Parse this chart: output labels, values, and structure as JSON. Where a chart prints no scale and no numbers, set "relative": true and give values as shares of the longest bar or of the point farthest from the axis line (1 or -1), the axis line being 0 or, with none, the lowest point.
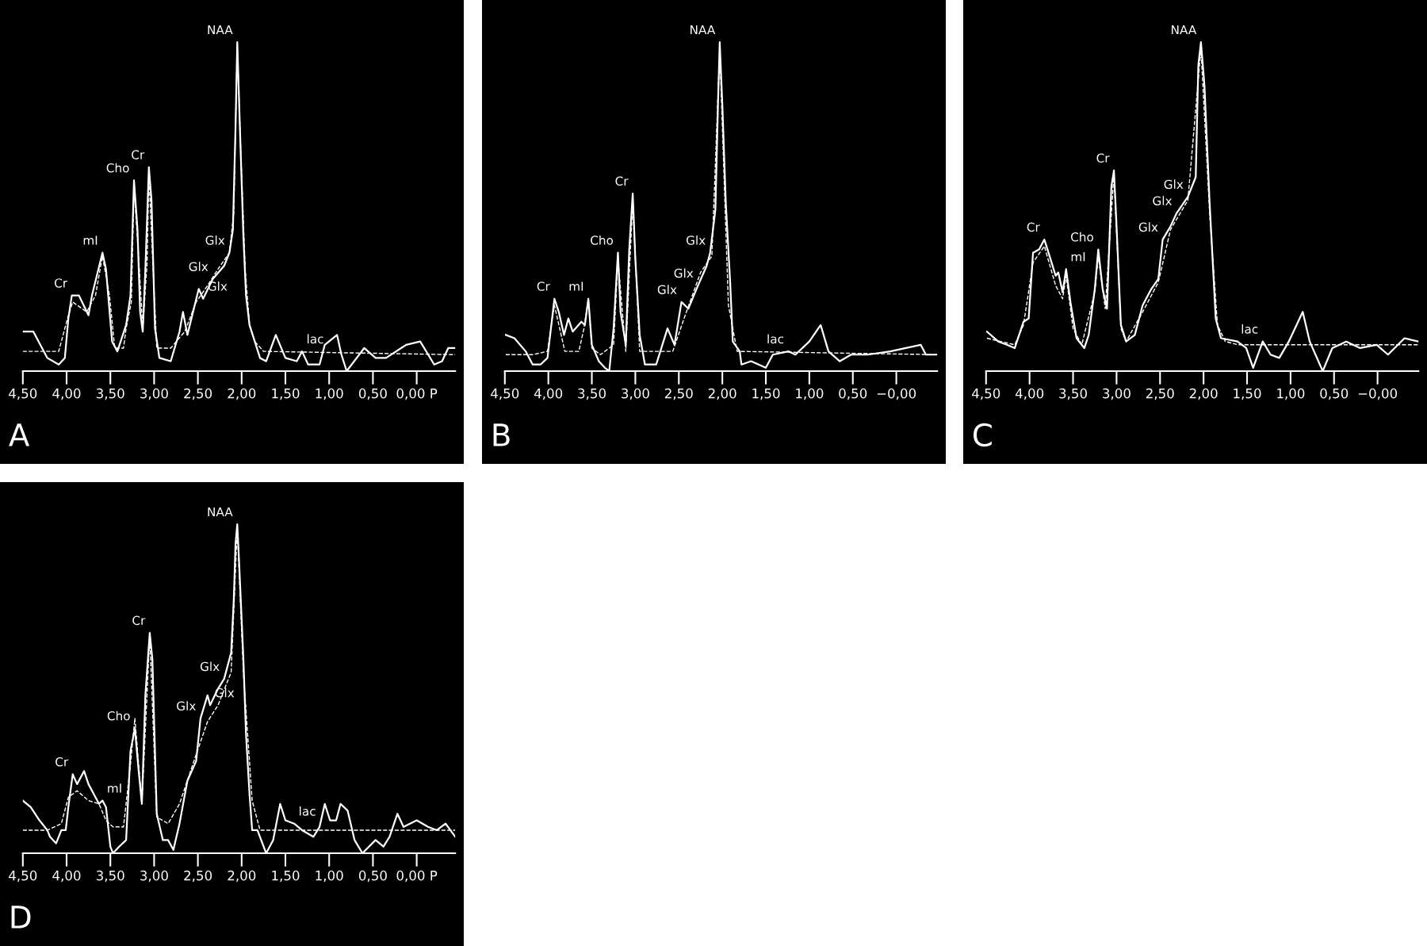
{
  "chart_data": [
    {
      "type": "line",
      "title": "A",
      "relative": true,
      "xlim": [
        4.5,
        -0.44
      ],
      "xticks": [
        {
          "value": 4.5,
          "label": "4,50"
        },
        {
          "value": 4.0,
          "label": "4,00"
        },
        {
          "value": 3.5,
          "label": "3,50"
        },
        {
          "value": 3.0,
          "label": "3,00"
        },
        {
          "value": 2.5,
          "label": "2,50"
        },
        {
          "value": 2.0,
          "label": "2,00"
        },
        {
          "value": 1.5,
          "label": "1,50"
        },
        {
          "value": 1.0,
          "label": "1,00"
        },
        {
          "value": 0.5,
          "label": "0,50"
        },
        {
          "value": 0.0,
          "label": "0,00 P"
        }
      ],
      "series": [
        {
          "color": "#ffffff",
          "line_style": "solid",
          "x": [
            4.5,
            4.38,
            4.22,
            4.09,
            4.02,
            3.98,
            3.94,
            3.86,
            3.75,
            3.71,
            3.59,
            3.55,
            3.48,
            3.42,
            3.32,
            3.27,
            3.23,
            3.19,
            3.16,
            3.13,
            3.1,
            3.06,
            3.03,
            2.99,
            2.94,
            2.81,
            2.71,
            2.67,
            2.62,
            2.49,
            2.44,
            2.33,
            2.2,
            2.14,
            2.1,
            2.07,
            2.05,
            2.02,
            1.98,
            1.95,
            1.91,
            1.79,
            1.72,
            1.61,
            1.5,
            1.37,
            1.31,
            1.24,
            1.11,
            1.05,
            0.91,
            0.86,
            0.8,
            0.6,
            0.47,
            0.35,
            0.12,
            -0.04,
            -0.2,
            -0.29,
            -0.36,
            -0.44
          ],
          "values": [
            0.12,
            0.12,
            0.04,
            0.02,
            0.04,
            0.16,
            0.23,
            0.23,
            0.17,
            0.23,
            0.36,
            0.31,
            0.09,
            0.06,
            0.14,
            0.23,
            0.58,
            0.43,
            0.18,
            0.12,
            0.31,
            0.62,
            0.52,
            0.13,
            0.04,
            0.03,
            0.12,
            0.18,
            0.11,
            0.25,
            0.22,
            0.28,
            0.32,
            0.36,
            0.43,
            0.74,
            1.0,
            0.74,
            0.41,
            0.23,
            0.14,
            0.04,
            0.03,
            0.11,
            0.04,
            0.03,
            0.06,
            0.02,
            0.02,
            0.08,
            0.11,
            0.05,
            0.0,
            0.07,
            0.04,
            0.04,
            0.08,
            0.09,
            0.02,
            0.03,
            0.07,
            0.07
          ]
        },
        {
          "color": "#ffffff",
          "line_style": "dashed",
          "x": [
            4.5,
            4.09,
            3.99,
            3.93,
            3.77,
            3.67,
            3.59,
            3.51,
            3.45,
            3.35,
            3.32,
            3.26,
            3.23,
            3.18,
            3.13,
            3.08,
            3.06,
            3.02,
            2.97,
            2.81,
            2.65,
            2.52,
            2.39,
            2.27,
            2.14,
            2.09,
            2.05,
            2.01,
            1.96,
            1.91,
            1.85,
            1.75,
            -0.44
          ],
          "values": [
            0.06,
            0.06,
            0.16,
            0.21,
            0.18,
            0.23,
            0.35,
            0.23,
            0.07,
            0.07,
            0.13,
            0.21,
            0.56,
            0.36,
            0.13,
            0.33,
            0.6,
            0.36,
            0.07,
            0.07,
            0.12,
            0.21,
            0.26,
            0.31,
            0.36,
            0.48,
            0.99,
            0.67,
            0.31,
            0.14,
            0.09,
            0.06,
            0.05
          ]
        }
      ],
      "annotations": [
        {
          "text": "Cr",
          "x": 3.94,
          "y": 0.23
        },
        {
          "text": "mI",
          "x": 3.59,
          "y": 0.36
        },
        {
          "text": "Cho",
          "x": 3.23,
          "y": 0.58
        },
        {
          "text": "Cr",
          "x": 3.06,
          "y": 0.62
        },
        {
          "text": "NAA",
          "x": 2.05,
          "y": 1.0
        },
        {
          "text": "Glx",
          "x": 2.44,
          "y": 0.22
        },
        {
          "text": "Glx",
          "x": 2.33,
          "y": 0.28
        },
        {
          "text": "Glx",
          "x": 2.14,
          "y": 0.36
        },
        {
          "text": "lac",
          "x": 1.31,
          "y": 0.06
        }
      ]
    },
    {
      "type": "line",
      "title": "B",
      "relative": true,
      "xlim": [
        4.5,
        -0.47
      ],
      "xticks": [
        {
          "value": 4.5,
          "label": "4,50"
        },
        {
          "value": 4.0,
          "label": "4,00"
        },
        {
          "value": 3.5,
          "label": "3,50"
        },
        {
          "value": 3.0,
          "label": "3,00"
        },
        {
          "value": 2.5,
          "label": "2,50"
        },
        {
          "value": 2.0,
          "label": "2,00"
        },
        {
          "value": 1.5,
          "label": "1,50"
        },
        {
          "value": 1.0,
          "label": "1,00"
        },
        {
          "value": 0.5,
          "label": "0,50"
        },
        {
          "value": 0.0,
          "label": "−0,00"
        }
      ],
      "series": [
        {
          "color": "#ffffff",
          "line_style": "solid",
          "x": [
            4.49,
            4.39,
            4.26,
            4.18,
            4.09,
            4.01,
            3.93,
            3.88,
            3.82,
            3.77,
            3.72,
            3.62,
            3.58,
            3.54,
            3.5,
            3.42,
            3.35,
            3.3,
            3.25,
            3.2,
            3.17,
            3.11,
            3.07,
            3.03,
            3.0,
            2.95,
            2.89,
            2.76,
            2.63,
            2.55,
            2.47,
            2.39,
            2.28,
            2.18,
            2.14,
            2.08,
            2.05,
            2.03,
            2.0,
            1.96,
            1.91,
            1.88,
            1.8,
            1.78,
            1.67,
            1.5,
            1.42,
            1.24,
            1.16,
            1.0,
            0.87,
            0.78,
            0.65,
            0.52,
            0.33,
            0.07,
            -0.28,
            -0.34,
            -0.47
          ],
          "values": [
            0.11,
            0.1,
            0.06,
            0.02,
            0.02,
            0.04,
            0.22,
            0.18,
            0.11,
            0.16,
            0.12,
            0.15,
            0.14,
            0.22,
            0.08,
            0.03,
            0.01,
            0.0,
            0.13,
            0.36,
            0.18,
            0.08,
            0.37,
            0.54,
            0.34,
            0.11,
            0.02,
            0.02,
            0.13,
            0.08,
            0.21,
            0.19,
            0.26,
            0.32,
            0.36,
            0.49,
            0.81,
            1.0,
            0.81,
            0.51,
            0.27,
            0.09,
            0.06,
            0.02,
            0.03,
            0.01,
            0.05,
            0.06,
            0.05,
            0.09,
            0.14,
            0.06,
            0.03,
            0.05,
            0.05,
            0.06,
            0.08,
            0.05,
            0.05
          ]
        },
        {
          "color": "#ffffff",
          "line_style": "dashed",
          "x": [
            4.49,
            4.18,
            4.01,
            3.93,
            3.81,
            3.65,
            3.59,
            3.54,
            3.5,
            3.4,
            3.25,
            3.2,
            3.11,
            3.03,
            2.95,
            2.57,
            2.44,
            2.25,
            2.12,
            2.03,
            1.93,
            1.83,
            -0.47
          ],
          "values": [
            0.05,
            0.05,
            0.06,
            0.2,
            0.06,
            0.06,
            0.13,
            0.22,
            0.07,
            0.05,
            0.08,
            0.34,
            0.06,
            0.52,
            0.06,
            0.06,
            0.16,
            0.3,
            0.35,
            0.98,
            0.2,
            0.06,
            0.05
          ]
        }
      ],
      "annotations": [
        {
          "text": "Cr",
          "x": 3.93,
          "y": 0.22
        },
        {
          "text": "mI",
          "x": 3.54,
          "y": 0.22
        },
        {
          "text": "Cho",
          "x": 3.2,
          "y": 0.36
        },
        {
          "text": "Cr",
          "x": 3.03,
          "y": 0.54
        },
        {
          "text": "NAA",
          "x": 2.03,
          "y": 1.0
        },
        {
          "text": "Glx",
          "x": 2.47,
          "y": 0.21
        },
        {
          "text": "Glx",
          "x": 2.28,
          "y": 0.26
        },
        {
          "text": "Glx",
          "x": 2.14,
          "y": 0.36
        },
        {
          "text": "lac",
          "x": 1.24,
          "y": 0.06
        }
      ]
    },
    {
      "type": "line",
      "title": "C",
      "relative": true,
      "xlim": [
        4.5,
        -0.47
      ],
      "xticks": [
        {
          "value": 4.5,
          "label": "4,50"
        },
        {
          "value": 4.0,
          "label": "4,00"
        },
        {
          "value": 3.5,
          "label": "3,50"
        },
        {
          "value": 3.0,
          "label": "3,00"
        },
        {
          "value": 2.5,
          "label": "2,50"
        },
        {
          "value": 2.0,
          "label": "2,00"
        },
        {
          "value": 1.5,
          "label": "1,50"
        },
        {
          "value": 1.0,
          "label": "1,00"
        },
        {
          "value": 0.5,
          "label": "0,50"
        },
        {
          "value": 0.0,
          "label": "−0,00"
        }
      ],
      "series": [
        {
          "color": "#ffffff",
          "line_style": "solid",
          "x": [
            4.49,
            4.36,
            4.26,
            4.17,
            4.07,
            4.01,
            3.96,
            3.89,
            3.83,
            3.77,
            3.7,
            3.67,
            3.62,
            3.58,
            3.53,
            3.46,
            3.37,
            3.32,
            3.25,
            3.21,
            3.16,
            3.11,
            3.06,
            3.03,
            3.0,
            2.95,
            2.89,
            2.79,
            2.7,
            2.6,
            2.52,
            2.47,
            2.38,
            2.31,
            2.18,
            2.09,
            2.06,
            2.03,
            1.99,
            1.93,
            1.86,
            1.8,
            1.61,
            1.51,
            1.43,
            1.32,
            1.23,
            1.13,
            1.02,
            0.86,
            0.78,
            0.63,
            0.52,
            0.36,
            0.2,
            0.01,
            -0.12,
            -0.31,
            -0.47
          ],
          "values": [
            0.12,
            0.09,
            0.08,
            0.07,
            0.15,
            0.16,
            0.36,
            0.37,
            0.4,
            0.35,
            0.29,
            0.3,
            0.24,
            0.31,
            0.21,
            0.1,
            0.07,
            0.11,
            0.25,
            0.37,
            0.25,
            0.19,
            0.56,
            0.61,
            0.44,
            0.14,
            0.09,
            0.11,
            0.2,
            0.25,
            0.28,
            0.4,
            0.44,
            0.48,
            0.53,
            0.59,
            0.93,
            1.0,
            0.87,
            0.51,
            0.16,
            0.1,
            0.09,
            0.07,
            0.01,
            0.09,
            0.05,
            0.04,
            0.09,
            0.18,
            0.09,
            0.0,
            0.07,
            0.09,
            0.07,
            0.08,
            0.05,
            0.1,
            0.09
          ]
        },
        {
          "color": "#ffffff",
          "line_style": "dashed",
          "x": [
            4.49,
            4.17,
            4.07,
            3.96,
            3.83,
            3.7,
            3.62,
            3.58,
            3.5,
            3.4,
            3.25,
            3.21,
            3.13,
            3.03,
            2.95,
            2.89,
            2.7,
            2.52,
            2.38,
            2.18,
            2.03,
            1.93,
            1.84,
            1.75,
            1.6,
            -0.47
          ],
          "values": [
            0.1,
            0.08,
            0.14,
            0.33,
            0.38,
            0.26,
            0.22,
            0.29,
            0.13,
            0.08,
            0.24,
            0.35,
            0.19,
            0.6,
            0.13,
            0.09,
            0.18,
            0.27,
            0.43,
            0.52,
            0.98,
            0.48,
            0.14,
            0.09,
            0.08,
            0.08
          ]
        }
      ],
      "annotations": [
        {
          "text": "Cr",
          "x": 3.83,
          "y": 0.4
        },
        {
          "text": "mI",
          "x": 3.58,
          "y": 0.31
        },
        {
          "text": "Cho",
          "x": 3.21,
          "y": 0.37
        },
        {
          "text": "Cr",
          "x": 3.03,
          "y": 0.61
        },
        {
          "text": "NAA",
          "x": 2.03,
          "y": 1.0
        },
        {
          "text": "Glx",
          "x": 2.47,
          "y": 0.4
        },
        {
          "text": "Glx",
          "x": 2.31,
          "y": 0.48
        },
        {
          "text": "Glx",
          "x": 2.18,
          "y": 0.53
        },
        {
          "text": "lac",
          "x": 1.32,
          "y": 0.09
        }
      ]
    },
    {
      "type": "line",
      "title": "D",
      "relative": true,
      "xlim": [
        4.5,
        -0.44
      ],
      "xticks": [
        {
          "value": 4.5,
          "label": "4,50"
        },
        {
          "value": 4.0,
          "label": "4,00"
        },
        {
          "value": 3.5,
          "label": "3,50"
        },
        {
          "value": 3.0,
          "label": "3,00"
        },
        {
          "value": 2.5,
          "label": "2,50"
        },
        {
          "value": 2.0,
          "label": "2,00"
        },
        {
          "value": 1.5,
          "label": "1,50"
        },
        {
          "value": 1.0,
          "label": "1,00"
        },
        {
          "value": 0.5,
          "label": "0,50"
        },
        {
          "value": 0.0,
          "label": "0,00 P"
        }
      ],
      "series": [
        {
          "color": "#ffffff",
          "line_style": "solid",
          "x": [
            4.5,
            4.41,
            4.31,
            4.22,
            4.19,
            4.12,
            4.06,
            4.01,
            3.98,
            3.93,
            3.88,
            3.8,
            3.75,
            3.69,
            3.63,
            3.59,
            3.55,
            3.5,
            3.47,
            3.4,
            3.32,
            3.27,
            3.22,
            3.18,
            3.14,
            3.1,
            3.05,
            3.02,
            2.97,
            2.9,
            2.84,
            2.78,
            2.71,
            2.62,
            2.52,
            2.47,
            2.39,
            2.36,
            2.27,
            2.2,
            2.12,
            2.09,
            2.07,
            2.05,
            2.03,
            1.98,
            1.95,
            1.91,
            1.88,
            1.82,
            1.72,
            1.64,
            1.56,
            1.5,
            1.4,
            1.31,
            1.18,
            1.11,
            1.05,
            0.99,
            0.92,
            0.87,
            0.79,
            0.71,
            0.62,
            0.47,
            0.38,
            0.31,
            0.22,
            0.15,
            0.0,
            -0.13,
            -0.23,
            -0.33,
            -0.44
          ],
          "values": [
            0.16,
            0.14,
            0.1,
            0.07,
            0.05,
            0.03,
            0.07,
            0.07,
            0.14,
            0.24,
            0.21,
            0.25,
            0.21,
            0.18,
            0.15,
            0.16,
            0.14,
            0.02,
            0.0,
            0.02,
            0.04,
            0.31,
            0.38,
            0.26,
            0.15,
            0.48,
            0.67,
            0.59,
            0.12,
            0.04,
            0.04,
            0.01,
            0.09,
            0.22,
            0.28,
            0.41,
            0.48,
            0.45,
            0.5,
            0.53,
            0.61,
            0.77,
            0.94,
            1.0,
            0.89,
            0.59,
            0.36,
            0.18,
            0.07,
            0.07,
            0.0,
            0.04,
            0.15,
            0.1,
            0.09,
            0.07,
            0.05,
            0.08,
            0.15,
            0.1,
            0.1,
            0.15,
            0.13,
            0.04,
            0.0,
            0.04,
            0.02,
            0.05,
            0.12,
            0.08,
            0.1,
            0.08,
            0.07,
            0.09,
            0.05
          ]
        },
        {
          "color": "#ffffff",
          "line_style": "dashed",
          "x": [
            4.5,
            4.22,
            4.06,
            3.98,
            3.88,
            3.75,
            3.63,
            3.55,
            3.47,
            3.35,
            3.27,
            3.22,
            3.14,
            3.05,
            2.97,
            2.84,
            2.71,
            2.52,
            2.39,
            2.27,
            2.12,
            2.05,
            1.98,
            1.88,
            1.79,
            -0.44
          ],
          "values": [
            0.07,
            0.07,
            0.09,
            0.17,
            0.19,
            0.16,
            0.15,
            0.1,
            0.08,
            0.08,
            0.27,
            0.41,
            0.15,
            0.66,
            0.11,
            0.09,
            0.15,
            0.3,
            0.4,
            0.45,
            0.55,
            0.99,
            0.55,
            0.16,
            0.07,
            0.07
          ]
        }
      ],
      "annotations": [
        {
          "text": "Cr",
          "x": 3.93,
          "y": 0.24
        },
        {
          "text": "mI",
          "x": 3.59,
          "y": 0.16
        },
        {
          "text": "Cho",
          "x": 3.22,
          "y": 0.38
        },
        {
          "text": "Cr",
          "x": 3.05,
          "y": 0.67
        },
        {
          "text": "NAA",
          "x": 2.05,
          "y": 1.0
        },
        {
          "text": "Glx",
          "x": 2.47,
          "y": 0.41
        },
        {
          "text": "Glx",
          "x": 2.36,
          "y": 0.45
        },
        {
          "text": "Glx",
          "x": 2.2,
          "y": 0.53
        },
        {
          "text": "lac",
          "x": 1.4,
          "y": 0.09
        }
      ]
    }
  ]
}
